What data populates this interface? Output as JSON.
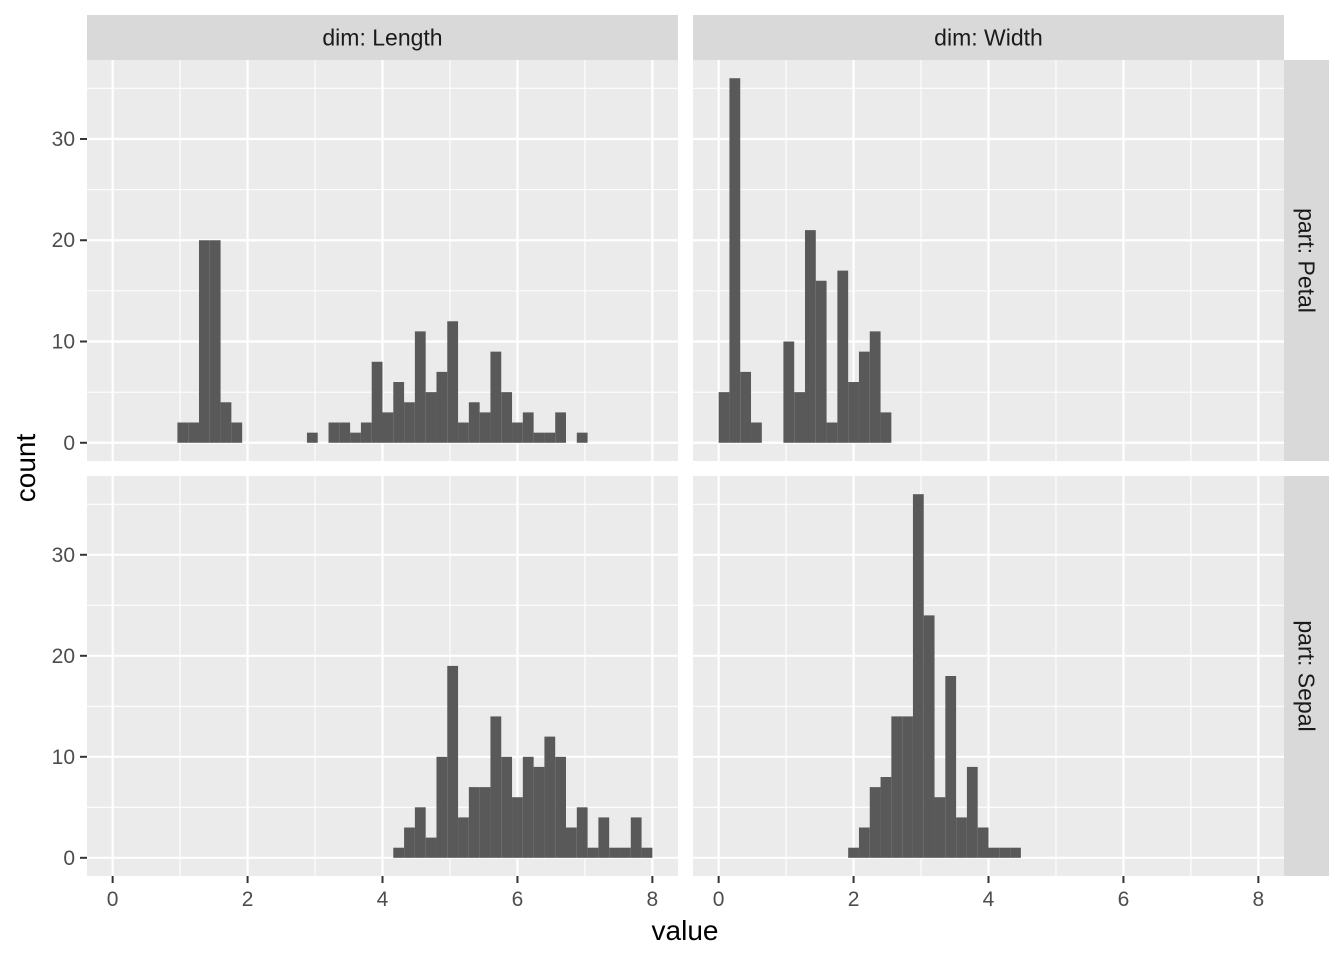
{
  "chart_data": {
    "type": "bar",
    "subtype": "faceted-histogram",
    "xlabel": "value",
    "ylabel": "count",
    "xlim": [
      -0.38,
      8.38
    ],
    "ylim": [
      -1.8,
      37.8
    ],
    "x_ticks": [
      0,
      2,
      4,
      6,
      8
    ],
    "y_ticks": [
      0,
      10,
      20,
      30
    ],
    "bin_width": 0.16,
    "grid": true,
    "colors": {
      "bars": "#595959",
      "panel_background": "#ebebeb",
      "strip_background": "#d9d9d9",
      "grid_line": "#ffffff"
    },
    "columns": [
      "dim: Length",
      "dim: Width"
    ],
    "rows": [
      "part: Petal",
      "part: Sepal"
    ],
    "panels": [
      {
        "column": "dim: Length",
        "row": "part: Petal",
        "bins": [
          {
            "x": 1.04,
            "count": 2
          },
          {
            "x": 1.2,
            "count": 2
          },
          {
            "x": 1.36,
            "count": 20
          },
          {
            "x": 1.52,
            "count": 20
          },
          {
            "x": 1.68,
            "count": 4
          },
          {
            "x": 1.84,
            "count": 2
          },
          {
            "x": 2.96,
            "count": 1
          },
          {
            "x": 3.28,
            "count": 2
          },
          {
            "x": 3.44,
            "count": 2
          },
          {
            "x": 3.6,
            "count": 1
          },
          {
            "x": 3.76,
            "count": 2
          },
          {
            "x": 3.92,
            "count": 8
          },
          {
            "x": 4.08,
            "count": 3
          },
          {
            "x": 4.24,
            "count": 6
          },
          {
            "x": 4.4,
            "count": 4
          },
          {
            "x": 4.56,
            "count": 11
          },
          {
            "x": 4.72,
            "count": 5
          },
          {
            "x": 4.88,
            "count": 7
          },
          {
            "x": 5.04,
            "count": 12
          },
          {
            "x": 5.2,
            "count": 2
          },
          {
            "x": 5.36,
            "count": 4
          },
          {
            "x": 5.52,
            "count": 3
          },
          {
            "x": 5.68,
            "count": 9
          },
          {
            "x": 5.84,
            "count": 5
          },
          {
            "x": 6.0,
            "count": 2
          },
          {
            "x": 6.16,
            "count": 3
          },
          {
            "x": 6.32,
            "count": 1
          },
          {
            "x": 6.48,
            "count": 1
          },
          {
            "x": 6.64,
            "count": 3
          },
          {
            "x": 6.96,
            "count": 1
          }
        ]
      },
      {
        "column": "dim: Width",
        "row": "part: Petal",
        "bins": [
          {
            "x": 0.08,
            "count": 5
          },
          {
            "x": 0.24,
            "count": 36
          },
          {
            "x": 0.4,
            "count": 7
          },
          {
            "x": 0.56,
            "count": 2
          },
          {
            "x": 1.04,
            "count": 10
          },
          {
            "x": 1.2,
            "count": 5
          },
          {
            "x": 1.36,
            "count": 21
          },
          {
            "x": 1.52,
            "count": 16
          },
          {
            "x": 1.68,
            "count": 2
          },
          {
            "x": 1.84,
            "count": 17
          },
          {
            "x": 2.0,
            "count": 6
          },
          {
            "x": 2.16,
            "count": 9
          },
          {
            "x": 2.32,
            "count": 11
          },
          {
            "x": 2.48,
            "count": 3
          }
        ]
      },
      {
        "column": "dim: Length",
        "row": "part: Sepal",
        "bins": [
          {
            "x": 4.24,
            "count": 1
          },
          {
            "x": 4.4,
            "count": 3
          },
          {
            "x": 4.56,
            "count": 5
          },
          {
            "x": 4.72,
            "count": 2
          },
          {
            "x": 4.88,
            "count": 10
          },
          {
            "x": 5.04,
            "count": 19
          },
          {
            "x": 5.2,
            "count": 4
          },
          {
            "x": 5.36,
            "count": 7
          },
          {
            "x": 5.52,
            "count": 7
          },
          {
            "x": 5.68,
            "count": 14
          },
          {
            "x": 5.84,
            "count": 10
          },
          {
            "x": 6.0,
            "count": 6
          },
          {
            "x": 6.16,
            "count": 10
          },
          {
            "x": 6.32,
            "count": 9
          },
          {
            "x": 6.48,
            "count": 12
          },
          {
            "x": 6.64,
            "count": 10
          },
          {
            "x": 6.8,
            "count": 3
          },
          {
            "x": 6.96,
            "count": 5
          },
          {
            "x": 7.12,
            "count": 1
          },
          {
            "x": 7.28,
            "count": 4
          },
          {
            "x": 7.44,
            "count": 1
          },
          {
            "x": 7.6,
            "count": 1
          },
          {
            "x": 7.76,
            "count": 4
          },
          {
            "x": 7.92,
            "count": 1
          }
        ]
      },
      {
        "column": "dim: Width",
        "row": "part: Sepal",
        "bins": [
          {
            "x": 2.0,
            "count": 1
          },
          {
            "x": 2.16,
            "count": 3
          },
          {
            "x": 2.32,
            "count": 7
          },
          {
            "x": 2.48,
            "count": 8
          },
          {
            "x": 2.64,
            "count": 14
          },
          {
            "x": 2.8,
            "count": 14
          },
          {
            "x": 2.96,
            "count": 36
          },
          {
            "x": 3.12,
            "count": 24
          },
          {
            "x": 3.28,
            "count": 6
          },
          {
            "x": 3.44,
            "count": 18
          },
          {
            "x": 3.6,
            "count": 4
          },
          {
            "x": 3.76,
            "count": 9
          },
          {
            "x": 3.92,
            "count": 3
          },
          {
            "x": 4.08,
            "count": 1
          },
          {
            "x": 4.24,
            "count": 1
          },
          {
            "x": 4.4,
            "count": 1
          }
        ]
      }
    ]
  }
}
